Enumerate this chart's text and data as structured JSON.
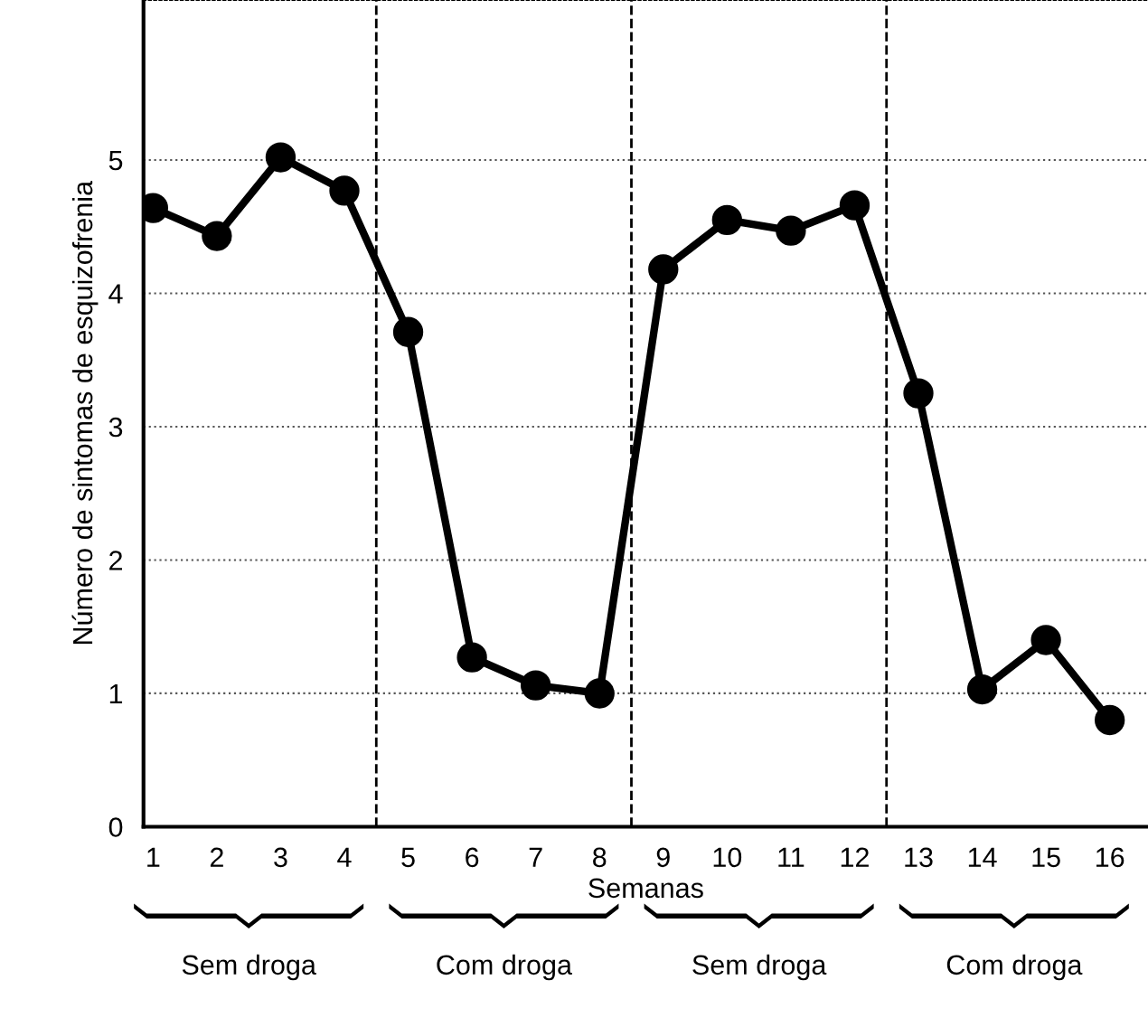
{
  "chart_data": {
    "type": "line",
    "xlabel": "Semanas",
    "ylabel": "Número de sintomas de esquizofrenia",
    "x": [
      1,
      2,
      3,
      4,
      5,
      6,
      7,
      8,
      9,
      10,
      11,
      12,
      13,
      14,
      15,
      16
    ],
    "series": [
      {
        "color": "#000000",
        "values": [
          4.64,
          4.43,
          5.02,
          4.77,
          3.71,
          1.27,
          1.06,
          1.0,
          4.18,
          4.55,
          4.47,
          4.66,
          3.25,
          1.03,
          1.4,
          0.8
        ]
      }
    ],
    "xlim": [
      0.85,
      16.6
    ],
    "xticks": [
      1,
      2,
      3,
      4,
      5,
      6,
      7,
      8,
      9,
      10,
      11,
      12,
      13,
      14,
      15,
      16
    ],
    "ylim": [
      0,
      6.2
    ],
    "yticks": [
      0,
      1,
      2,
      3,
      4,
      5
    ],
    "grid": "y",
    "marker": "circle",
    "line_style": "solid",
    "legend": false,
    "ref_lines": [
      {
        "axis": "x",
        "value": 4.5,
        "line_style": "dashed",
        "color": "#000000"
      },
      {
        "axis": "x",
        "value": 8.5,
        "line_style": "dashed",
        "color": "#000000"
      },
      {
        "axis": "x",
        "value": 12.5,
        "line_style": "dashed",
        "color": "#000000"
      }
    ],
    "annotations": [
      "Sem droga",
      "Com droga",
      "Sem droga",
      "Com droga"
    ]
  }
}
